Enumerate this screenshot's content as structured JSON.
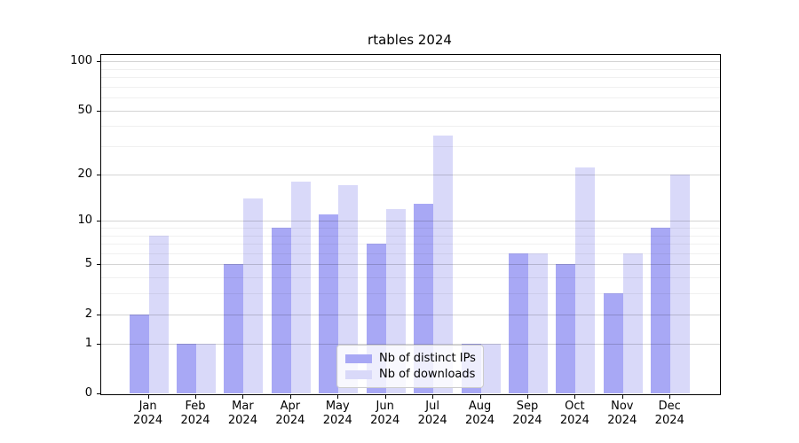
{
  "title": "rtables 2024",
  "legend": {
    "items": [
      {
        "label": "Nb of distinct IPs",
        "color": "#a8a8f5"
      },
      {
        "label": "Nb of downloads",
        "color": "#d9d9f9"
      }
    ]
  },
  "chart_data": {
    "type": "bar",
    "title": "rtables 2024",
    "categories": [
      "Jan 2024",
      "Feb 2024",
      "Mar 2024",
      "Apr 2024",
      "May 2024",
      "Jun 2024",
      "Jul 2024",
      "Aug 2024",
      "Sep 2024",
      "Oct 2024",
      "Nov 2024",
      "Dec 2024"
    ],
    "series": [
      {
        "name": "Nb of distinct IPs",
        "color": "#a8a8f5",
        "values": [
          2,
          1,
          5,
          9,
          11,
          7,
          13,
          1,
          6,
          5,
          3,
          9
        ]
      },
      {
        "name": "Nb of downloads",
        "color": "#d9d9f9",
        "values": [
          8,
          1,
          14,
          18,
          17,
          12,
          35,
          1,
          6,
          22,
          6,
          20
        ]
      }
    ],
    "xlabel": "",
    "ylabel": "",
    "yscale": "log1p",
    "ylim": [
      0,
      113
    ],
    "yticks": [
      0,
      1,
      2,
      5,
      10,
      20,
      50,
      100
    ],
    "yticks_minor": [
      3,
      4,
      6,
      7,
      8,
      9,
      30,
      40,
      60,
      70,
      80,
      90
    ],
    "grid": true,
    "legend_position": "lower center"
  }
}
